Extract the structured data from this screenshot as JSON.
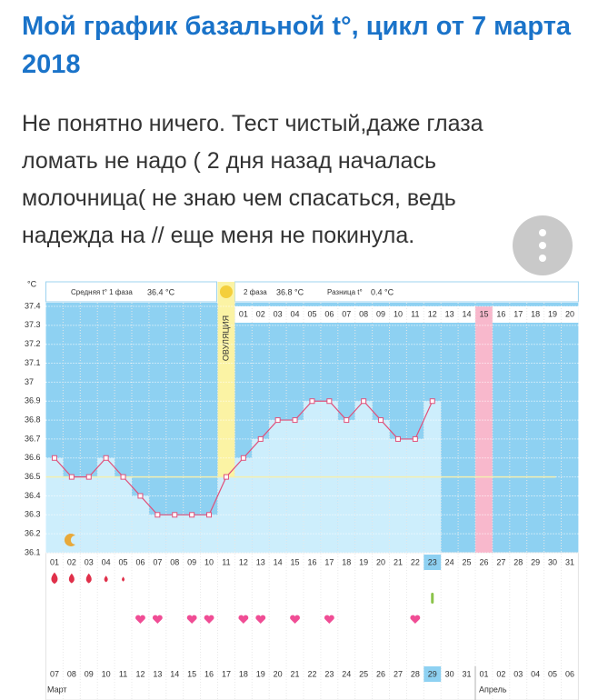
{
  "header": {
    "title": "Мой график базальной t°, цикл от 7 марта 2018"
  },
  "post": {
    "lines": [
      "Не понятно ничего. Тест чистый,даже глаза",
      "ломать не надо ( 2 дня назад началась",
      "молочница( не знаю чем спасаться, ведь",
      "надежда на // еще меня не покинула."
    ]
  },
  "chart_data": {
    "type": "line",
    "unit": "°C",
    "phase1": {
      "label": "Средняя t° 1 фаза",
      "value": "36.4 °C"
    },
    "phase2": {
      "label": "2 фаза",
      "value": "36.8 °C"
    },
    "diff": {
      "label": "Разница t°",
      "value": "0.4 °C"
    },
    "ovulation_label": "ОВУЛЯЦИЯ",
    "ylim": [
      36.1,
      37.4
    ],
    "yticks": [
      37.4,
      37.3,
      37.2,
      37.1,
      37,
      36.9,
      36.8,
      36.7,
      36.6,
      36.5,
      36.4,
      36.3,
      36.2,
      36.1
    ],
    "coverline": 36.5,
    "categories": [
      "01",
      "02",
      "03",
      "04",
      "05",
      "06",
      "07",
      "08",
      "09",
      "10",
      "11",
      "12",
      "13",
      "14",
      "15",
      "16",
      "17",
      "18",
      "19",
      "20",
      "21",
      "22",
      "23",
      "24",
      "25",
      "26",
      "27",
      "28",
      "29",
      "30",
      "31"
    ],
    "series": [
      {
        "name": "t°",
        "color": "#e0507a",
        "values": [
          36.6,
          36.5,
          36.5,
          36.6,
          36.5,
          36.4,
          36.3,
          36.3,
          36.3,
          36.3,
          36.5,
          36.6,
          36.7,
          36.8,
          36.8,
          36.9,
          36.9,
          36.8,
          36.9,
          36.8,
          36.7,
          36.7,
          36.9,
          null,
          null,
          null,
          null,
          null,
          null,
          null,
          null
        ]
      }
    ],
    "phase2_days": [
      "01",
      "02",
      "03",
      "04",
      "05",
      "06",
      "07",
      "08",
      "09",
      "10",
      "11",
      "12",
      "13",
      "14",
      "15",
      "16",
      "17",
      "18",
      "19",
      "20"
    ],
    "dates": [
      "07",
      "08",
      "09",
      "10",
      "11",
      "12",
      "13",
      "14",
      "15",
      "16",
      "17",
      "18",
      "19",
      "20",
      "21",
      "22",
      "23",
      "24",
      "25",
      "26",
      "27",
      "28",
      "29",
      "30",
      "31",
      "01",
      "02",
      "03",
      "04",
      "05",
      "06"
    ],
    "months": [
      "Март",
      "Апрель"
    ]
  }
}
